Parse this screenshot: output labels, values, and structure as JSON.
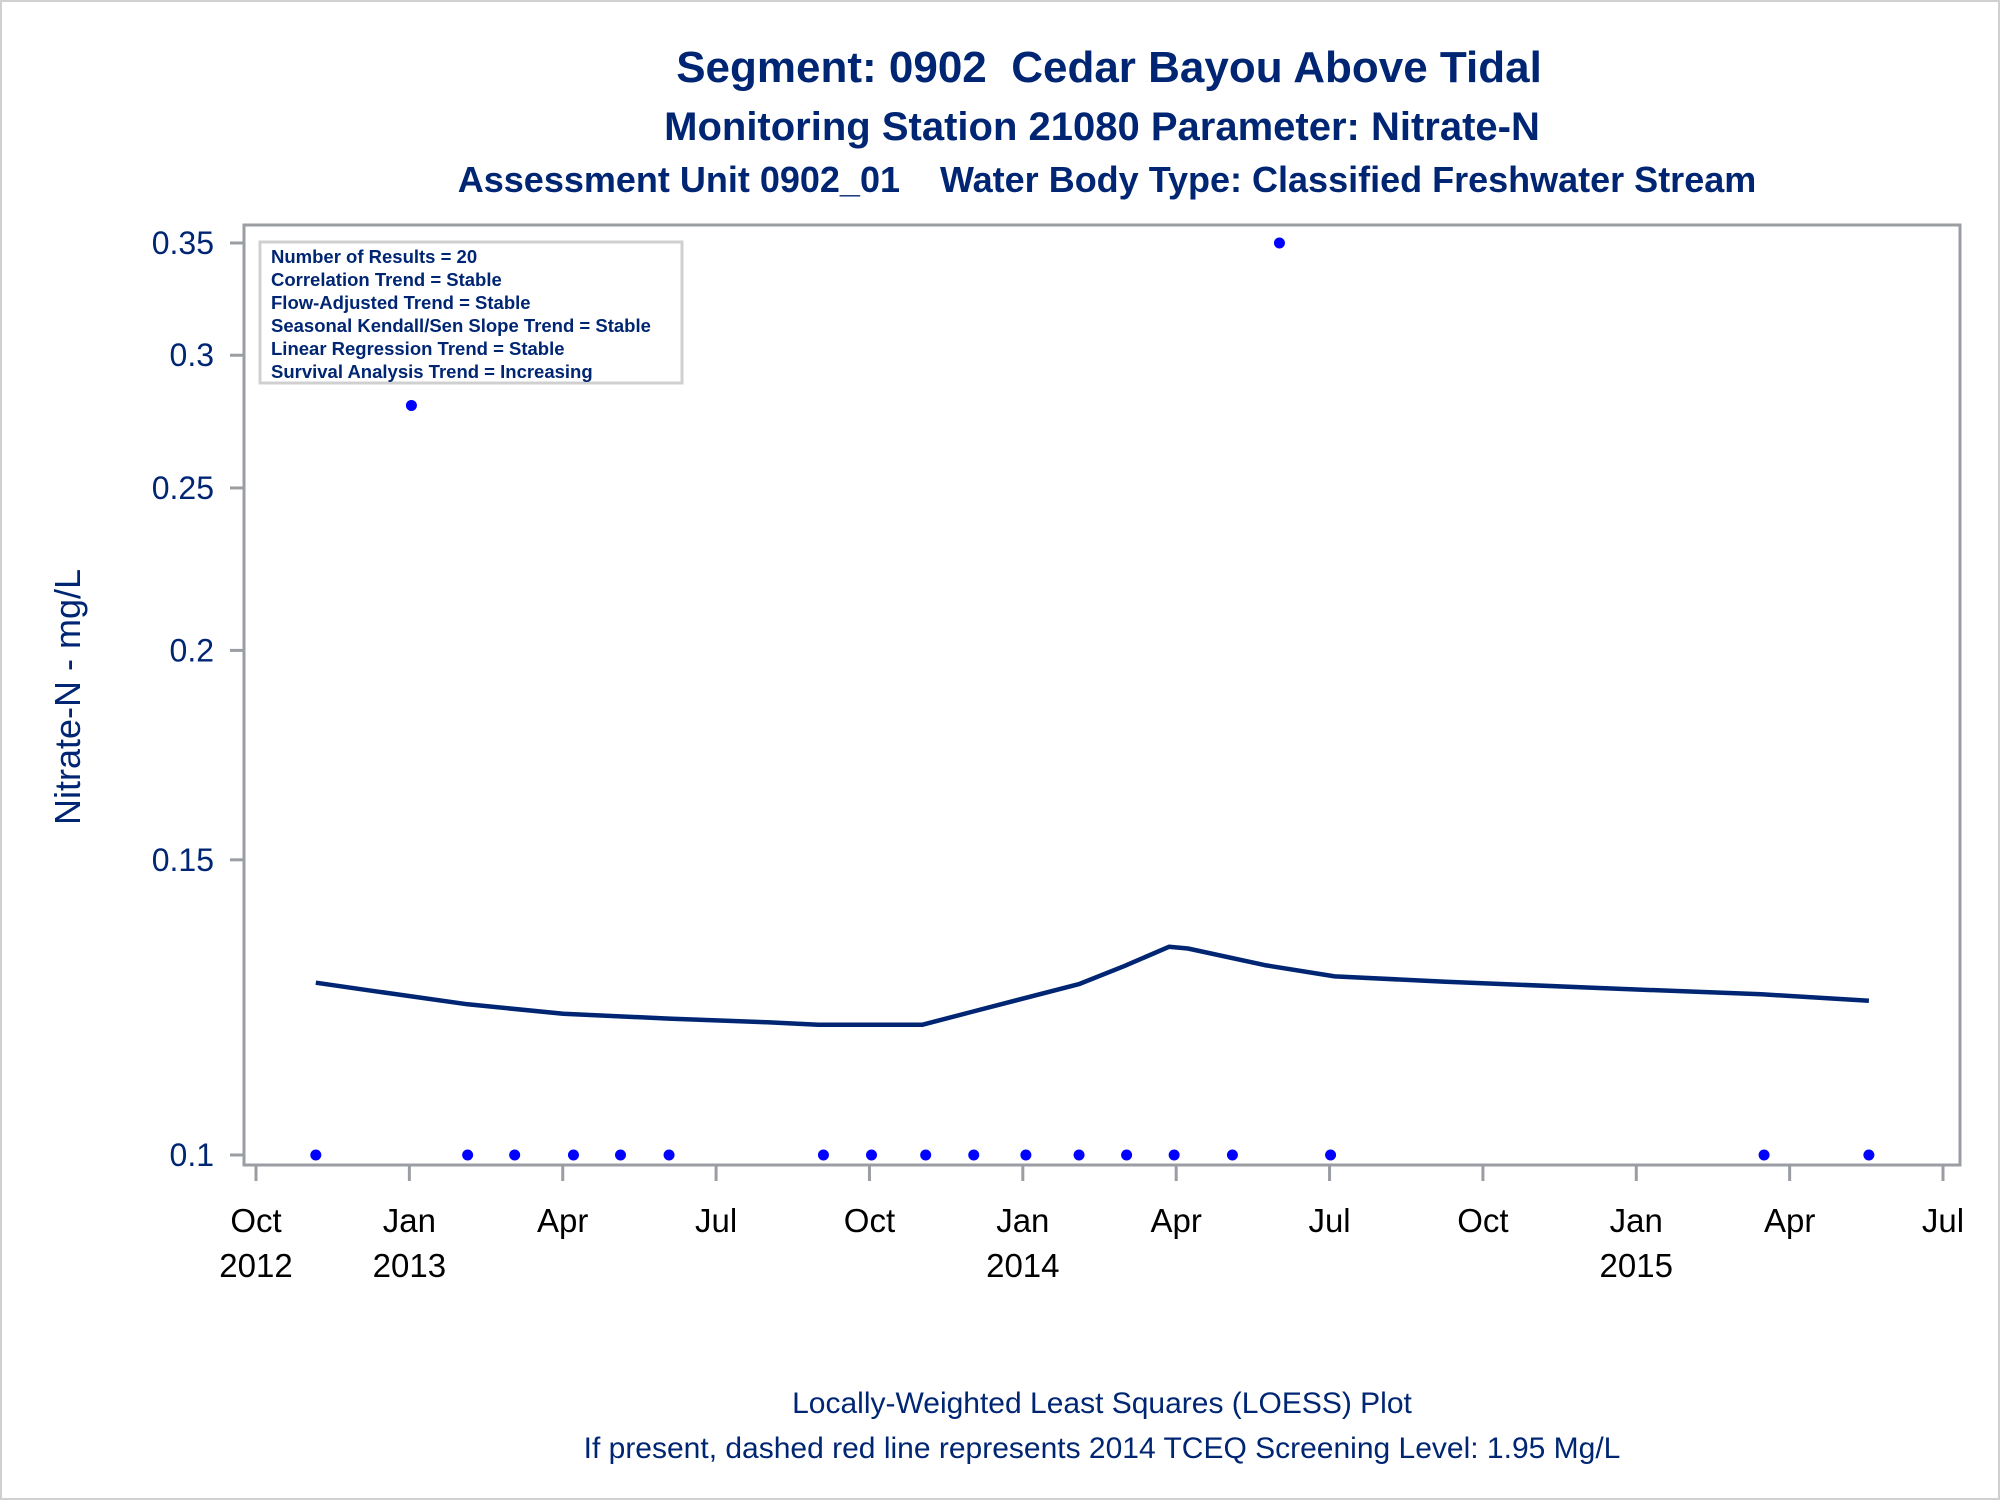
{
  "chart_data": {
    "type": "scatter",
    "title": "Segment: 0902  Cedar Bayou Above Tidal",
    "subtitle": "Monitoring Station 21080 Parameter: Nitrate-N",
    "subtitle2": "Assessment Unit 0902_01    Water Body Type: Classified Freshwater Stream",
    "ylabel": "Nitrate-N - mg/L",
    "xlabel": "",
    "yscale": "log",
    "ylim": [
      0.1,
      0.35
    ],
    "yticks": [
      {
        "value": 0.1,
        "label": "0.1"
      },
      {
        "value": 0.15,
        "label": "0.15"
      },
      {
        "value": 0.2,
        "label": "0.2"
      },
      {
        "value": 0.25,
        "label": "0.25"
      },
      {
        "value": 0.3,
        "label": "0.3"
      },
      {
        "value": 0.35,
        "label": "0.35"
      }
    ],
    "x_unit": "months since 2012-10-01",
    "xlim": [
      0,
      33
    ],
    "xticks": [
      {
        "value": 0,
        "month": "Oct",
        "year": "2012"
      },
      {
        "value": 3,
        "month": "Jan",
        "year": "2013"
      },
      {
        "value": 6,
        "month": "Apr",
        "year": ""
      },
      {
        "value": 9,
        "month": "Jul",
        "year": ""
      },
      {
        "value": 12,
        "month": "Oct",
        "year": ""
      },
      {
        "value": 15,
        "month": "Jan",
        "year": "2014"
      },
      {
        "value": 18,
        "month": "Apr",
        "year": ""
      },
      {
        "value": 21,
        "month": "Jul",
        "year": ""
      },
      {
        "value": 24,
        "month": "Oct",
        "year": ""
      },
      {
        "value": 27,
        "month": "Jan",
        "year": "2015"
      },
      {
        "value": 30,
        "month": "Apr",
        "year": ""
      },
      {
        "value": 33,
        "month": "Jul",
        "year": ""
      }
    ],
    "series": [
      {
        "name": "Observations",
        "kind": "scatter",
        "color": "#0000ff",
        "points": [
          [
            1.17,
            0.1
          ],
          [
            3.04,
            0.28
          ],
          [
            4.14,
            0.1
          ],
          [
            5.06,
            0.1
          ],
          [
            6.21,
            0.1
          ],
          [
            7.13,
            0.1
          ],
          [
            8.08,
            0.1
          ],
          [
            11.1,
            0.1
          ],
          [
            12.04,
            0.1
          ],
          [
            13.1,
            0.1
          ],
          [
            14.04,
            0.1
          ],
          [
            15.06,
            0.1
          ],
          [
            16.1,
            0.1
          ],
          [
            17.03,
            0.1
          ],
          [
            17.96,
            0.1
          ],
          [
            19.1,
            0.1
          ],
          [
            20.02,
            0.35
          ],
          [
            21.02,
            0.1
          ],
          [
            29.5,
            0.1
          ],
          [
            31.55,
            0.1
          ]
        ]
      },
      {
        "name": "LOESS",
        "kind": "line",
        "color": "#002673",
        "points": [
          [
            1.17,
            0.1267
          ],
          [
            2.27,
            0.1253
          ],
          [
            4.14,
            0.123
          ],
          [
            6.01,
            0.1214
          ],
          [
            8.08,
            0.1206
          ],
          [
            10.0,
            0.12
          ],
          [
            11.0,
            0.1196
          ],
          [
            13.04,
            0.1196
          ],
          [
            13.99,
            0.1217
          ],
          [
            16.11,
            0.1265
          ],
          [
            16.98,
            0.1296
          ],
          [
            17.86,
            0.1331
          ],
          [
            18.23,
            0.1328
          ],
          [
            19.73,
            0.1298
          ],
          [
            21.1,
            0.1278
          ],
          [
            23.22,
            0.1269
          ],
          [
            26.21,
            0.1258
          ],
          [
            29.45,
            0.1247
          ],
          [
            31.55,
            0.1236
          ]
        ]
      }
    ],
    "legend": {
      "placement": "top-left",
      "lines": [
        "Number of Results = 20",
        "Correlation Trend = Stable",
        "Flow-Adjusted Trend = Stable",
        "Seasonal Kendall/Sen Slope Trend = Stable",
        "Linear Regression Trend = Stable",
        "Survival Analysis Trend = Increasing"
      ]
    },
    "footnotes": [
      "Locally-Weighted Least Squares (LOESS) Plot",
      "If present, dashed red line represents 2014 TCEQ Screening Level: 1.95 Mg/L"
    ],
    "grid": false
  }
}
